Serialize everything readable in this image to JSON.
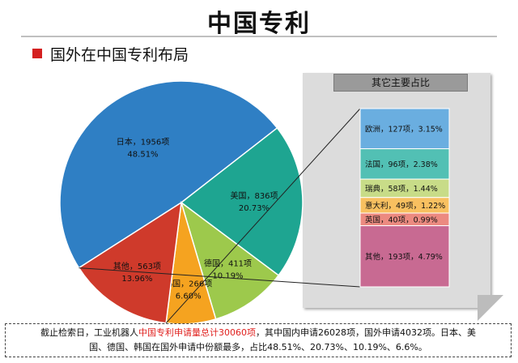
{
  "page": {
    "title": "中国专利",
    "section_title": "国外在中国专利布局",
    "side_panel_title": "其它主要占比",
    "footnote": {
      "part1": "截止检索日，工业机器人",
      "highlight": "中国专利申请量总计30060项",
      "part2": "，其中国内申请26028项，国外申请4032项。日本、美",
      "line2": "国、德国、韩国在国外申请中份额最多，占比48.51%、20.73%、10.19%、6.6%。"
    }
  },
  "chart_data": [
    {
      "type": "pie",
      "slices": [
        {
          "label": "日本，1956项",
          "count": 1956,
          "pct_label": "48.51%",
          "value": 48.51,
          "color": "#2f7fc4"
        },
        {
          "label": "美国，836项",
          "count": 836,
          "pct_label": "20.73%",
          "value": 20.73,
          "color": "#1ea591"
        },
        {
          "label": "德国，411项",
          "count": 411,
          "pct_label": "10.19%",
          "value": 10.19,
          "color": "#9dc94c"
        },
        {
          "label": "韩国，266项",
          "count": 266,
          "pct_label": "6.60%",
          "value": 6.6,
          "color": "#f5a320"
        },
        {
          "label": "其他，563项",
          "count": 563,
          "pct_label": "13.96%",
          "value": 13.96,
          "color": "#cf3a2b"
        }
      ]
    },
    {
      "type": "bar",
      "stacked": true,
      "title": "其它主要占比",
      "segments": [
        {
          "label": "欧洲，127项，3.15%",
          "count": 127,
          "value": 3.15,
          "color": "#6aaee0"
        },
        {
          "label": "法国，96项，2.38%",
          "count": 96,
          "value": 2.38,
          "color": "#52c0b4"
        },
        {
          "label": "瑞典，58项，1.44%",
          "count": 58,
          "value": 1.44,
          "color": "#c8dc88"
        },
        {
          "label": "意大利，49项，1.22%",
          "count": 49,
          "value": 1.22,
          "color": "#f8c060"
        },
        {
          "label": "英国，40项，0.99%",
          "count": 40,
          "value": 0.99,
          "color": "#ec8a80"
        },
        {
          "label": "其他，193项，4.79%",
          "count": 193,
          "value": 4.79,
          "color": "#c86a92"
        }
      ]
    }
  ]
}
